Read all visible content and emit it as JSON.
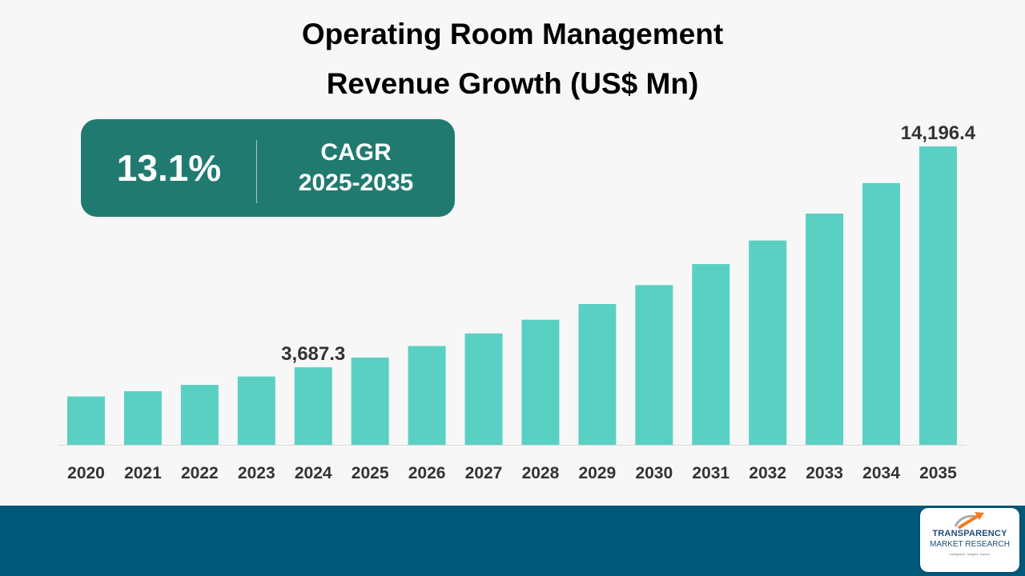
{
  "title": {
    "line1": "Operating Room Management",
    "line2": "Revenue Growth (US$ Mn)"
  },
  "cagr": {
    "value": "13.1%",
    "label": "CAGR",
    "period": "2025-2035"
  },
  "colors": {
    "bar": "#5ad0c3",
    "cagr_box": "#217a70",
    "footer": "#00587a",
    "axis_text": "#333333"
  },
  "chart_data": {
    "type": "bar",
    "title": "Operating Room Management Revenue Growth (US$ Mn)",
    "xlabel": "",
    "ylabel": "",
    "categories": [
      "2020",
      "2021",
      "2022",
      "2023",
      "2024",
      "2025",
      "2026",
      "2027",
      "2028",
      "2029",
      "2030",
      "2031",
      "2032",
      "2033",
      "2034",
      "2035"
    ],
    "values": [
      2300,
      2550,
      2850,
      3250,
      3687.3,
      4150,
      4700,
      5300,
      5950,
      6700,
      7600,
      8600,
      9720,
      11000,
      12450,
      14196.4
    ],
    "data_labels": [
      {
        "category": "2024",
        "text": "3,687.3"
      },
      {
        "category": "2035",
        "text": "14,196.4"
      }
    ],
    "ylim": [
      0,
      14196.4
    ],
    "grid": false,
    "legend": "none"
  },
  "logo": {
    "name": "TRANSPARENCY",
    "name2": "MARKET RESEARCH",
    "tagline": "Intelligence. Insights. Impact."
  }
}
